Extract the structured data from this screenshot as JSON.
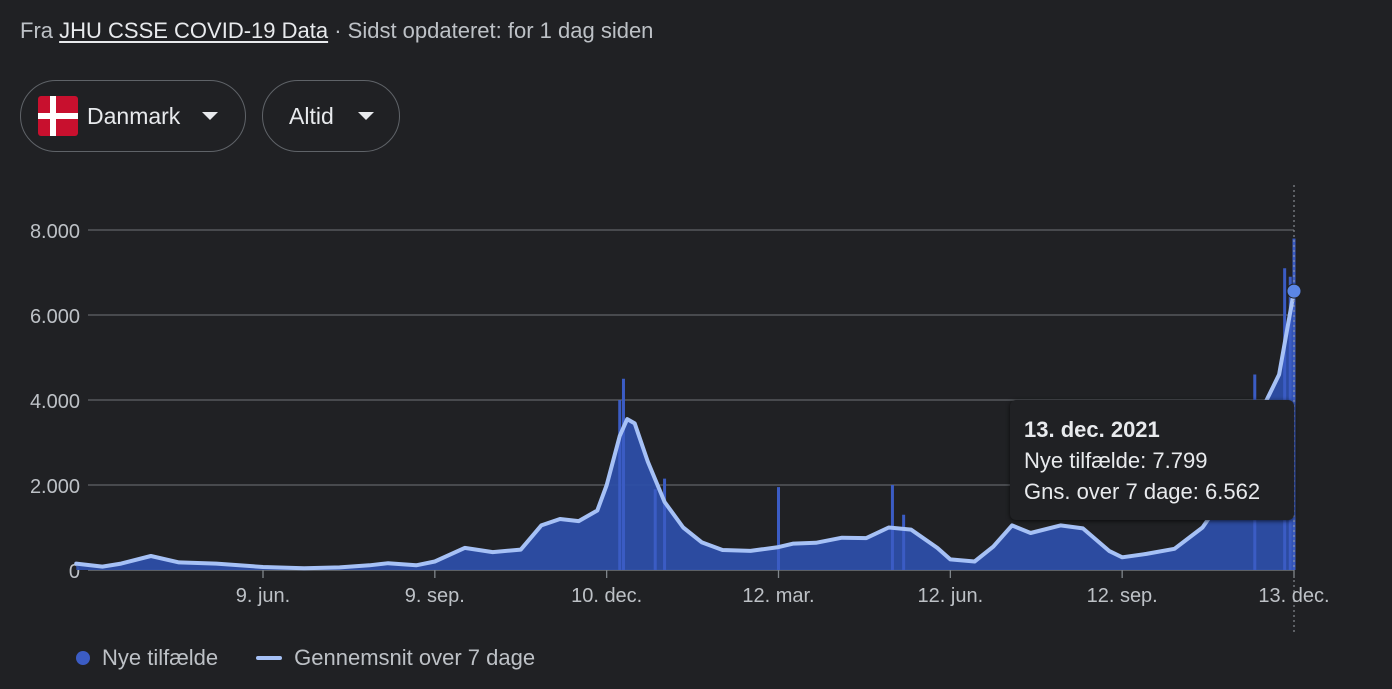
{
  "source": {
    "prefix": "Fra",
    "link": "JHU CSSE COVID-19 Data",
    "suffix": "· Sidst opdateret: for 1 dag siden"
  },
  "controls": {
    "country": "Danmark",
    "range": "Altid"
  },
  "colors": {
    "bars": "#3b5cc4",
    "area": "#2d4ea8",
    "avg_line": "#a6c1f6",
    "grid": "#5f6368",
    "background": "#202124"
  },
  "tooltip": {
    "date": "13. dec. 2021",
    "cases_label": "Nye tilfælde: 7.799",
    "avg_label": "Gns. over 7 dage: 6.562"
  },
  "legend": {
    "cases": "Nye tilfælde",
    "avg": "Gennemsnit over 7 dage"
  },
  "chart_data": {
    "type": "bar",
    "y_ticks": [
      "0",
      "2.000",
      "4.000",
      "6.000",
      "8.000"
    ],
    "ylim": [
      0,
      8000
    ],
    "x_ticks": [
      "9. jun.",
      "9. sep.",
      "10. dec.",
      "12. mar.",
      "12. jun.",
      "12. sep.",
      "13. dec."
    ],
    "x_tick_dates": [
      "2020-06-09",
      "2020-09-09",
      "2020-12-10",
      "2021-03-12",
      "2021-06-12",
      "2021-09-12",
      "2021-12-13"
    ],
    "x_range": [
      "2020-03-01",
      "2021-12-13"
    ],
    "series": [
      {
        "name": "Gennemsnit over 7 dage",
        "type": "line",
        "points": [
          [
            "2020-03-01",
            150
          ],
          [
            "2020-03-15",
            80
          ],
          [
            "2020-03-25",
            150
          ],
          [
            "2020-04-10",
            330
          ],
          [
            "2020-04-25",
            180
          ],
          [
            "2020-05-15",
            150
          ],
          [
            "2020-06-09",
            70
          ],
          [
            "2020-07-01",
            40
          ],
          [
            "2020-07-20",
            60
          ],
          [
            "2020-08-05",
            110
          ],
          [
            "2020-08-15",
            160
          ],
          [
            "2020-08-30",
            110
          ],
          [
            "2020-09-09",
            200
          ],
          [
            "2020-09-25",
            520
          ],
          [
            "2020-10-10",
            420
          ],
          [
            "2020-10-25",
            480
          ],
          [
            "2020-11-05",
            1050
          ],
          [
            "2020-11-15",
            1200
          ],
          [
            "2020-11-25",
            1150
          ],
          [
            "2020-12-05",
            1400
          ],
          [
            "2020-12-10",
            2000
          ],
          [
            "2020-12-17",
            3150
          ],
          [
            "2020-12-21",
            3550
          ],
          [
            "2020-12-25",
            3450
          ],
          [
            "2021-01-01",
            2550
          ],
          [
            "2021-01-10",
            1600
          ],
          [
            "2021-01-20",
            1000
          ],
          [
            "2021-01-30",
            650
          ],
          [
            "2021-02-10",
            470
          ],
          [
            "2021-02-25",
            450
          ],
          [
            "2021-03-12",
            540
          ],
          [
            "2021-03-20",
            620
          ],
          [
            "2021-04-01",
            640
          ],
          [
            "2021-04-15",
            760
          ],
          [
            "2021-04-28",
            750
          ],
          [
            "2021-05-10",
            1000
          ],
          [
            "2021-05-22",
            950
          ],
          [
            "2021-06-05",
            520
          ],
          [
            "2021-06-12",
            250
          ],
          [
            "2021-06-25",
            200
          ],
          [
            "2021-07-05",
            550
          ],
          [
            "2021-07-15",
            1050
          ],
          [
            "2021-07-25",
            870
          ],
          [
            "2021-08-10",
            1050
          ],
          [
            "2021-08-22",
            980
          ],
          [
            "2021-09-05",
            450
          ],
          [
            "2021-09-12",
            300
          ],
          [
            "2021-09-25",
            380
          ],
          [
            "2021-10-10",
            500
          ],
          [
            "2021-10-25",
            1000
          ],
          [
            "2021-11-05",
            1700
          ],
          [
            "2021-11-15",
            2800
          ],
          [
            "2021-11-25",
            3700
          ],
          [
            "2021-12-05",
            4600
          ],
          [
            "2021-12-13",
            6562
          ]
        ]
      },
      {
        "name": "Nye tilfælde",
        "type": "bar",
        "points": [
          [
            "2020-12-17",
            4000
          ],
          [
            "2020-12-19",
            4500
          ],
          [
            "2021-01-05",
            1900
          ],
          [
            "2021-01-10",
            2150
          ],
          [
            "2021-03-12",
            1950
          ],
          [
            "2021-05-12",
            2000
          ],
          [
            "2021-05-18",
            1300
          ],
          [
            "2021-11-22",
            4600
          ],
          [
            "2021-12-08",
            7100
          ],
          [
            "2021-12-11",
            6900
          ],
          [
            "2021-12-13",
            7799
          ]
        ]
      }
    ],
    "highlight": {
      "date": "2021-12-13",
      "value": 6562
    }
  }
}
